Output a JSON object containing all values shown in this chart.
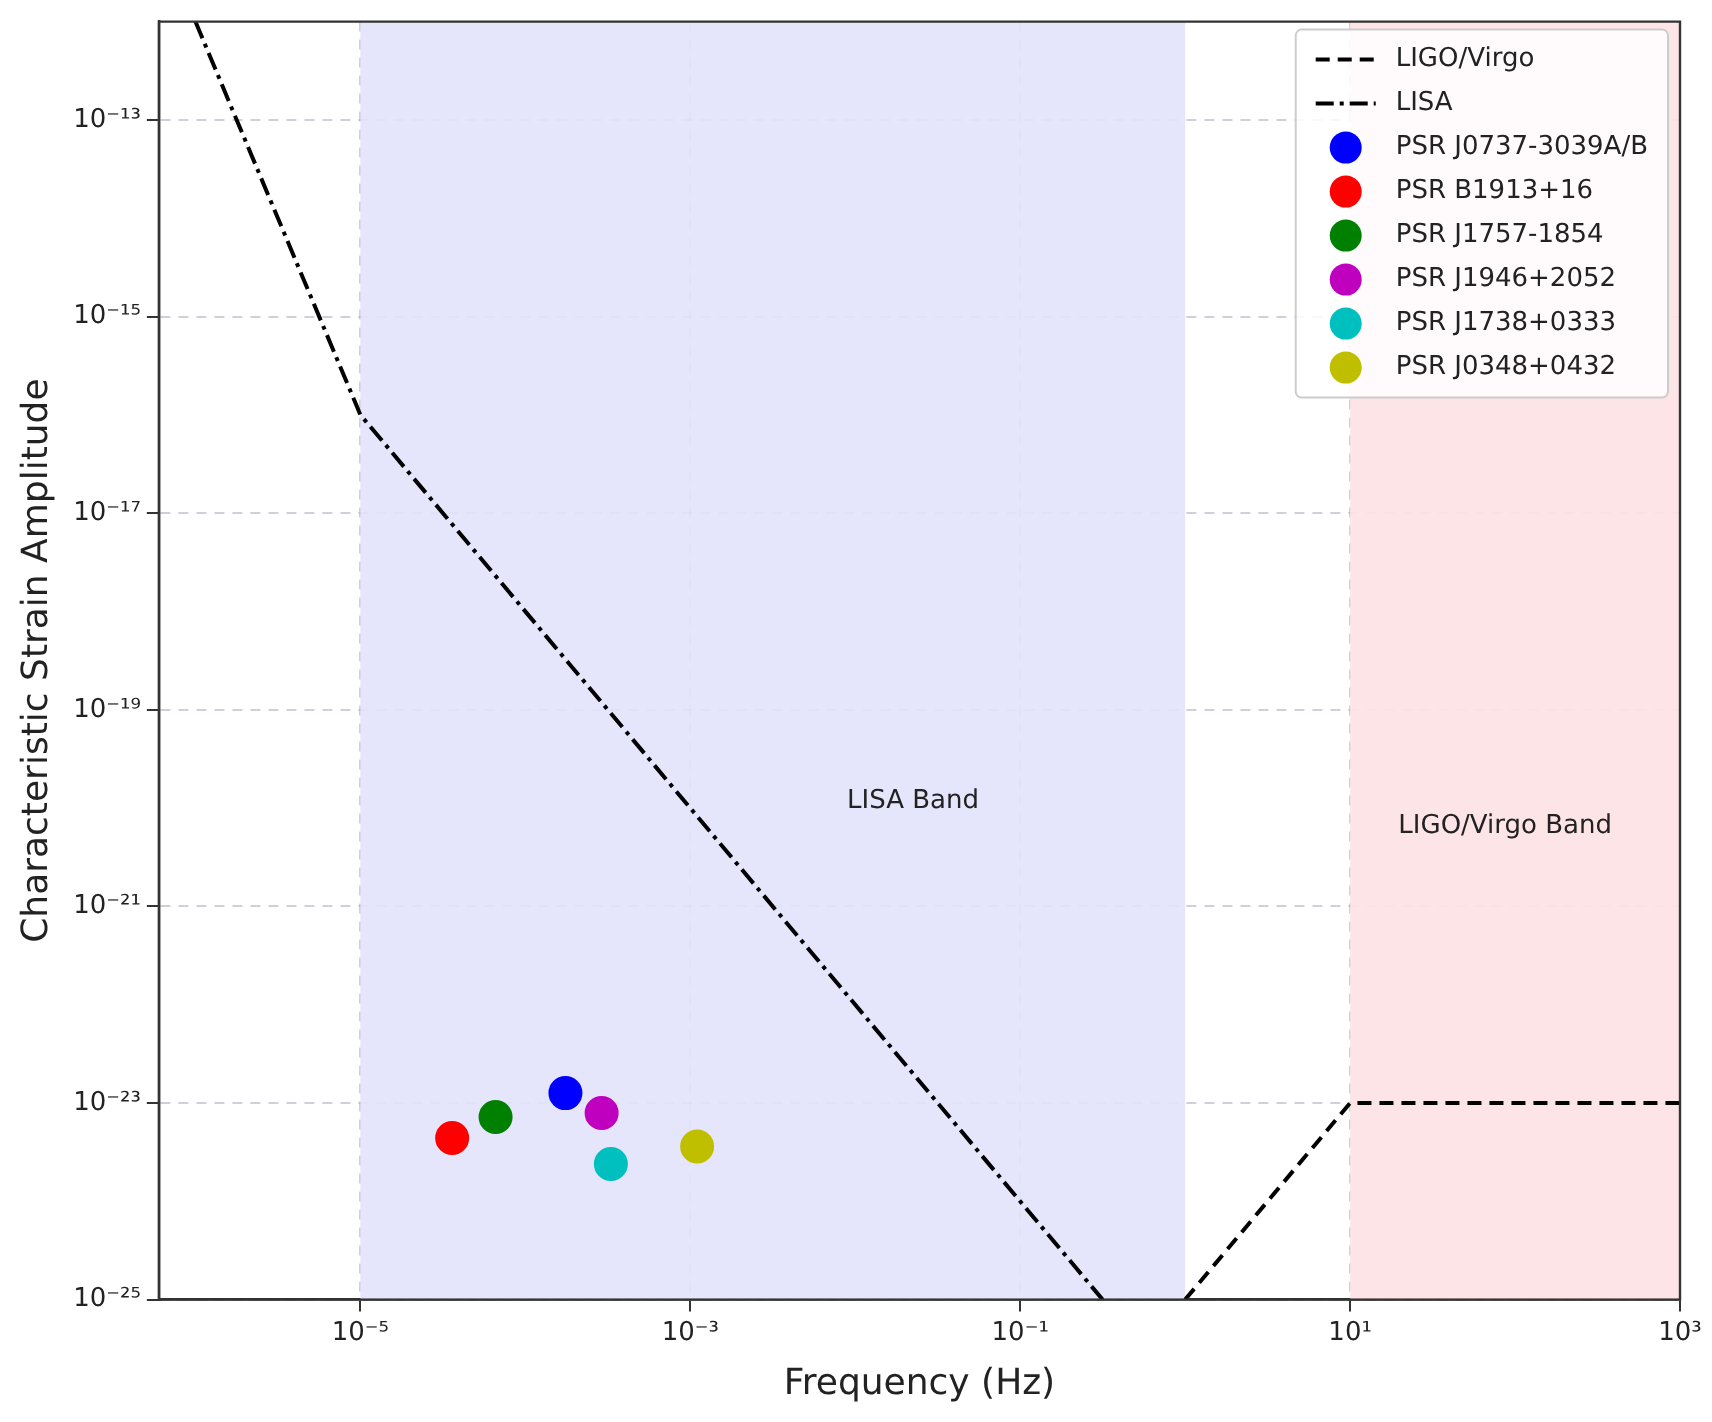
{
  "chart_data": {
    "type": "line",
    "xlabel": "Frequency (Hz)",
    "ylabel": "Characteristic Strain Amplitude",
    "log": "xy",
    "xlim": [
      6e-07,
      1000
    ],
    "ylim": [
      1e-25,
      1e-12
    ],
    "xticks": [
      {
        "value": 1e-05,
        "label": "10⁻⁵"
      },
      {
        "value": 0.001,
        "label": "10⁻³"
      },
      {
        "value": 0.1,
        "label": "10⁻¹"
      },
      {
        "value": 10,
        "label": "10¹"
      },
      {
        "value": 1000,
        "label": "10³"
      }
    ],
    "yticks": [
      {
        "value": 1e-25,
        "label": "10⁻²⁵"
      },
      {
        "value": 1e-23,
        "label": "10⁻²³"
      },
      {
        "value": 1e-21,
        "label": "10⁻²¹"
      },
      {
        "value": 1e-19,
        "label": "10⁻¹⁹"
      },
      {
        "value": 1e-17,
        "label": "10⁻¹⁷"
      },
      {
        "value": 1e-15,
        "label": "10⁻¹⁵"
      },
      {
        "value": 1e-13,
        "label": "10⁻¹³"
      }
    ],
    "grid": true,
    "legend": "top right",
    "series": [
      {
        "name": "LIGO/Virgo",
        "type": "line",
        "color": "#000000",
        "line_style": "dashed",
        "marker": "none",
        "x": [
          1,
          10,
          1000
        ],
        "values": [
          1e-25,
          1e-23,
          1e-23
        ]
      },
      {
        "name": "LISA",
        "type": "line",
        "color": "#000000",
        "line_style": "dashdot",
        "marker": "none",
        "x": [
          1e-06,
          1e-05,
          0.316
        ],
        "values": [
          1e-12,
          1e-16,
          1e-25
        ]
      },
      {
        "name": "PSR J0737-3039A/B",
        "type": "scatter",
        "color": "#0000ff",
        "marker": "circle",
        "x": [
          0.000175
        ],
        "values": [
          1.26e-23
        ]
      },
      {
        "name": "PSR B1913+16",
        "type": "scatter",
        "color": "#ff0000",
        "marker": "circle",
        "x": [
          3.6e-05
        ],
        "values": [
          4.4e-24
        ]
      },
      {
        "name": "PSR J1757-1854",
        "type": "scatter",
        "color": "#008000",
        "marker": "circle",
        "x": [
          6.6e-05
        ],
        "values": [
          7.2e-24
        ]
      },
      {
        "name": "PSR J1946+2052",
        "type": "scatter",
        "color": "#bf00bf",
        "marker": "circle",
        "x": [
          0.00029
        ],
        "values": [
          7.9e-24
        ]
      },
      {
        "name": "PSR J1738+0333",
        "type": "scatter",
        "color": "#00bfbf",
        "marker": "circle",
        "x": [
          0.00033
        ],
        "values": [
          2.4e-24
        ]
      },
      {
        "name": "PSR J0348+0432",
        "type": "scatter",
        "color": "#bfbf00",
        "marker": "circle",
        "x": [
          0.0011
        ],
        "values": [
          3.6e-24
        ]
      }
    ],
    "bands": [
      {
        "axis": "x",
        "from": 1e-05,
        "to": 1,
        "color": "#e2e2fb",
        "label": "LISA Band"
      },
      {
        "axis": "x",
        "from": 10,
        "to": 1000,
        "color": "#fde2e4",
        "label": "LIGO/Virgo Band"
      }
    ]
  }
}
